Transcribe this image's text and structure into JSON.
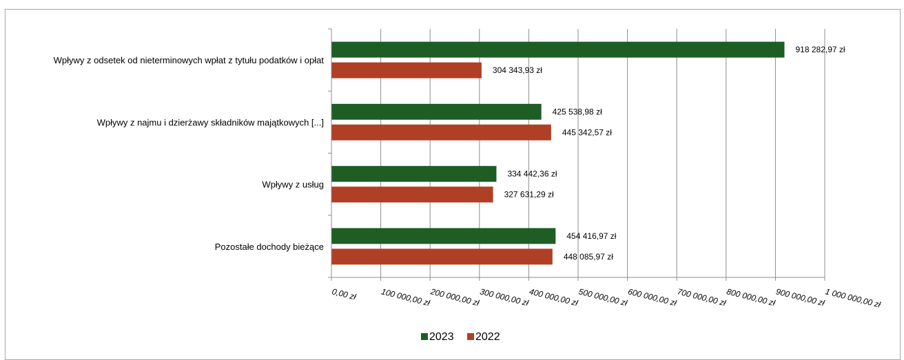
{
  "chart_data": {
    "type": "bar",
    "orientation": "horizontal",
    "categories": [
      "Wpływy z odsetek od nieterminowych wpłat z tytułu podatków i opłat",
      "Wpływy z najmu i dzierżawy składników majątkowych [...]",
      "Wpływy z usług",
      "Pozostałe dochody bieżące"
    ],
    "series": [
      {
        "name": "2023",
        "color": "#1e5e25",
        "values": [
          918282.97,
          425538.98,
          334442.36,
          454416.97
        ],
        "labels": [
          "918 282,97 zł",
          "425 538,98 zł",
          "334 442,36 zł",
          "454 416,97 zł"
        ]
      },
      {
        "name": "2022",
        "color": "#b04025",
        "values": [
          304343.93,
          445342.57,
          327631.29,
          448085.97
        ],
        "labels": [
          "304 343,93 zł",
          "445 342,57 zł",
          "327 631,29 zł",
          "448 085,97 zł"
        ]
      }
    ],
    "xlim": [
      0,
      1000000
    ],
    "xticks": [
      0,
      100000,
      200000,
      300000,
      400000,
      500000,
      600000,
      700000,
      800000,
      900000,
      1000000
    ],
    "xtick_labels": [
      "0,00 zł",
      "100 000,00 zł",
      "200 000,00 zł",
      "300 000,00 zł",
      "400 000,00 zł",
      "500 000,00 zł",
      "600 000,00 zł",
      "700 000,00 zł",
      "800 000,00 zł",
      "900 000,00 zł",
      "1 000 000,00 zł"
    ],
    "grid": true,
    "legend_position": "bottom",
    "title": "",
    "xlabel": "",
    "ylabel": ""
  }
}
